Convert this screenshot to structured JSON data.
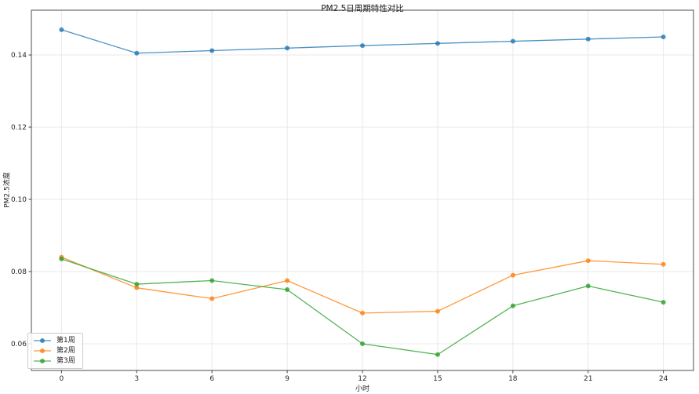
{
  "chart_data": {
    "type": "line",
    "title": "PM2.5日周期特性对比",
    "xlabel": "小时",
    "ylabel": "PM2.5浓度",
    "x": [
      0,
      3,
      6,
      9,
      12,
      15,
      18,
      21,
      24
    ],
    "series": [
      {
        "name": "第1周",
        "color": "#1f77b4",
        "values": [
          0.147,
          0.1405,
          0.1412,
          0.1419,
          0.1426,
          0.1432,
          0.1438,
          0.1444,
          0.145
        ]
      },
      {
        "name": "第2周",
        "color": "#ff7f0e",
        "values": [
          0.084,
          0.0755,
          0.0725,
          0.0775,
          0.0685,
          0.069,
          0.079,
          0.083,
          0.082
        ]
      },
      {
        "name": "第3周",
        "color": "#2ca02c",
        "values": [
          0.0835,
          0.0765,
          0.0775,
          0.075,
          0.06,
          0.057,
          0.0705,
          0.076,
          0.0715
        ]
      }
    ],
    "xticks": [
      "0",
      "3",
      "6",
      "9",
      "12",
      "15",
      "18",
      "21",
      "24"
    ],
    "yticks": [
      "0.06",
      "0.08",
      "0.10",
      "0.12",
      "0.14"
    ],
    "xlim": [
      -1.2,
      25.2
    ],
    "ylim": [
      0.0526,
      0.1524
    ],
    "grid": true,
    "line_opacity": 0.8,
    "legend_position": "lower left"
  },
  "style": {
    "grid_color": "#e8e8e8",
    "spine_color": "#4d4d4d",
    "tick_color": "#333333",
    "text_color": "#262626"
  }
}
